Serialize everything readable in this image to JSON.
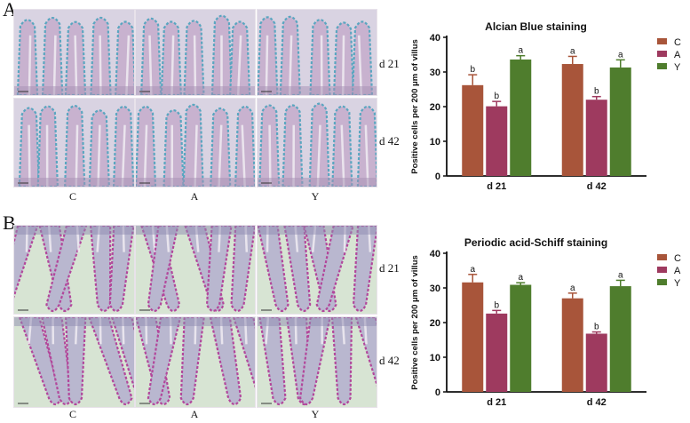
{
  "panels": {
    "A": {
      "letter": "A",
      "row_labels": [
        "d 21",
        "d 42"
      ],
      "col_labels": [
        "C",
        "A",
        "Y"
      ],
      "stain": "alcian",
      "colors": {
        "bg": "#d9d3e2",
        "tissue": "#c8b2cf",
        "edge": "#5aa6c0",
        "dark": "#a68fb3"
      }
    },
    "B": {
      "letter": "B",
      "row_labels": [
        "d 21",
        "d 42"
      ],
      "col_labels": [
        "C",
        "A",
        "Y"
      ],
      "stain": "pas",
      "colors": {
        "bg": "#d7e4d3",
        "tissue": "#b9b7cf",
        "edge": "#b2479b",
        "dark": "#8f8bb1"
      }
    }
  },
  "legend_labels": [
    "C",
    "A",
    "Y"
  ],
  "chart_data": [
    {
      "type": "bar",
      "title": "Alcian Blue staining",
      "ylabel": "Positive cells per 200 μm of villus",
      "xlabel": "",
      "categories": [
        "d 21",
        "d 42"
      ],
      "ylim": [
        0,
        40
      ],
      "yticks": [
        0,
        10,
        20,
        30,
        40
      ],
      "series": [
        {
          "name": "C",
          "color": "#a8553a",
          "values": [
            26.2,
            32.3
          ],
          "errors": [
            3.0,
            2.2
          ],
          "letters": [
            "b",
            "a"
          ]
        },
        {
          "name": "A",
          "color": "#9e3a5f",
          "values": [
            20.1,
            22.0
          ],
          "errors": [
            1.4,
            0.9
          ],
          "letters": [
            "b",
            "b"
          ]
        },
        {
          "name": "Y",
          "color": "#4f7d2d",
          "values": [
            33.6,
            31.3
          ],
          "errors": [
            1.1,
            2.2
          ],
          "letters": [
            "a",
            "a"
          ]
        }
      ]
    },
    {
      "type": "bar",
      "title": "Periodic acid-Schiff staining",
      "ylabel": "Positive cells per 200 μm of villus",
      "xlabel": "",
      "categories": [
        "d 21",
        "d 42"
      ],
      "ylim": [
        0,
        40
      ],
      "yticks": [
        0,
        10,
        20,
        30,
        40
      ],
      "series": [
        {
          "name": "C",
          "color": "#a8553a",
          "values": [
            31.6,
            27.0
          ],
          "errors": [
            2.3,
            1.5
          ],
          "letters": [
            "a",
            "a"
          ]
        },
        {
          "name": "A",
          "color": "#9e3a5f",
          "values": [
            22.6,
            16.8
          ],
          "errors": [
            0.9,
            0.5
          ],
          "letters": [
            "b",
            "b"
          ]
        },
        {
          "name": "Y",
          "color": "#4f7d2d",
          "values": [
            30.9,
            30.5
          ],
          "errors": [
            0.6,
            1.7
          ],
          "letters": [
            "a",
            "a"
          ]
        }
      ]
    }
  ]
}
